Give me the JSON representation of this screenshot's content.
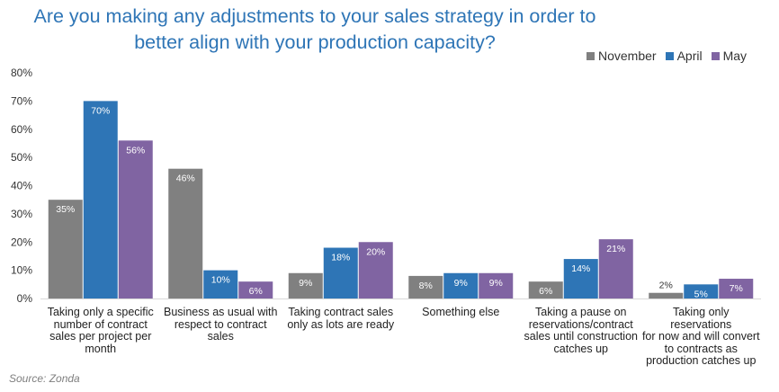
{
  "title_lines": [
    "Are you making any adjustments to your sales strategy in order to",
    "better align with your production capacity?"
  ],
  "source": "Source: Zonda",
  "colors": {
    "November": "#808080",
    "April": "#2E75B6",
    "May": "#8064A2"
  },
  "chart_data": {
    "type": "bar",
    "title": "Are you making any adjustments to your sales strategy in order to better align with your production capacity?",
    "categories": [
      "Taking only a specific number of contract sales per project per month",
      "Business as usual with respect to contract sales",
      "Taking contract sales only as lots are ready",
      "Something else",
      "Taking a pause on reservations/contract sales until construction catches up",
      "Taking only reservations for now and will convert to contracts as production catches up"
    ],
    "category_lines": [
      [
        "Taking only a specific",
        "number of contract",
        "sales per project per",
        "month"
      ],
      [
        "Business as usual with",
        "respect to contract sales"
      ],
      [
        "Taking contract sales",
        "only as lots are ready"
      ],
      [
        "Something else"
      ],
      [
        "Taking a pause on",
        "reservations/contract",
        "sales until construction",
        "catches up"
      ],
      [
        "Taking only reservations",
        "for now and will convert",
        "to contracts as",
        "production catches up"
      ]
    ],
    "series": [
      {
        "name": "November",
        "values": [
          35,
          46,
          9,
          8,
          6,
          2
        ],
        "labels": [
          "35%",
          "46%",
          "9%",
          "8%",
          "6%",
          "2%"
        ]
      },
      {
        "name": "April",
        "values": [
          70,
          10,
          18,
          9,
          14,
          5
        ],
        "labels": [
          "70%",
          "10%",
          "18%",
          "9%",
          "14%",
          "5%"
        ]
      },
      {
        "name": "May",
        "values": [
          56,
          6,
          20,
          9,
          21,
          7
        ],
        "labels": [
          "56%",
          "6%",
          "20%",
          "9%",
          "21%",
          "7%"
        ]
      }
    ],
    "yticks": [
      "0%",
      "10%",
      "20%",
      "30%",
      "40%",
      "50%",
      "60%",
      "70%",
      "80%"
    ],
    "ylim": [
      0,
      80
    ],
    "grid": false,
    "legend": "top-right"
  }
}
